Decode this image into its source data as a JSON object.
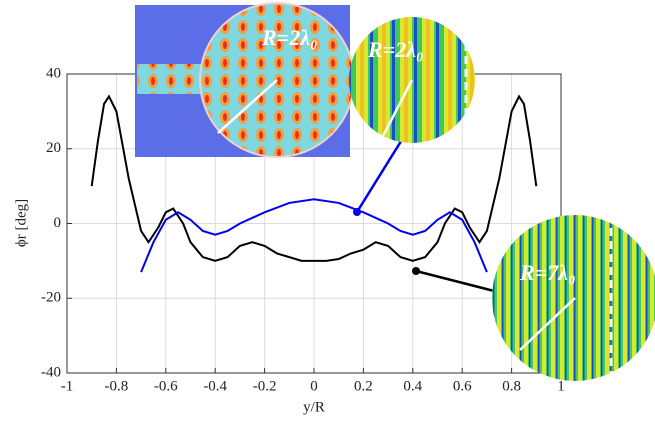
{
  "chart_data": {
    "type": "line",
    "xlabel": "y/R",
    "ylabel": "ϕr [deg]",
    "xlim": [
      -1,
      1
    ],
    "ylim": [
      -40,
      40
    ],
    "xticks": [
      -1,
      -0.8,
      -0.6,
      -0.4,
      -0.2,
      0,
      0.2,
      0.4,
      0.6,
      0.8,
      1
    ],
    "yticks": [
      -40,
      -20,
      0,
      20,
      40
    ],
    "grid": true,
    "annotations": [
      "R=2λ₀",
      "R=2λ₀",
      "R=7λ₀"
    ],
    "series": [
      {
        "color": "#000000",
        "x": [
          -0.9,
          -0.875,
          -0.85,
          -0.83,
          -0.8,
          -0.75,
          -0.7,
          -0.67,
          -0.63,
          -0.6,
          -0.57,
          -0.53,
          -0.5,
          -0.45,
          -0.4,
          -0.35,
          -0.3,
          -0.25,
          -0.2,
          -0.15,
          -0.1,
          -0.05,
          0,
          0.05,
          0.1,
          0.15,
          0.2,
          0.25,
          0.3,
          0.35,
          0.4,
          0.45,
          0.5,
          0.53,
          0.57,
          0.6,
          0.63,
          0.67,
          0.7,
          0.75,
          0.8,
          0.83,
          0.85,
          0.875,
          0.9
        ],
        "values": [
          10,
          22,
          32,
          34,
          30,
          12,
          -2,
          -5,
          -1,
          3,
          4,
          0,
          -5,
          -9,
          -10,
          -9,
          -6,
          -5,
          -6,
          -8,
          -9,
          -10,
          -10,
          -10,
          -9.5,
          -8,
          -7,
          -5,
          -6,
          -9,
          -10,
          -9,
          -5,
          0,
          4,
          3,
          -1,
          -5,
          -2,
          12,
          30,
          34,
          32,
          22,
          10
        ]
      },
      {
        "color": "#0000ee",
        "x": [
          -0.7,
          -0.65,
          -0.6,
          -0.55,
          -0.5,
          -0.45,
          -0.4,
          -0.35,
          -0.3,
          -0.2,
          -0.1,
          0,
          0.1,
          0.2,
          0.3,
          0.35,
          0.4,
          0.45,
          0.5,
          0.55,
          0.6,
          0.65,
          0.7
        ],
        "values": [
          -13,
          -5,
          1,
          3,
          1,
          -2,
          -3,
          -2,
          0,
          3,
          5.5,
          6.5,
          5.5,
          3,
          0,
          -2,
          -3,
          -2,
          1,
          3,
          1,
          -5,
          -13
        ]
      }
    ]
  }
}
